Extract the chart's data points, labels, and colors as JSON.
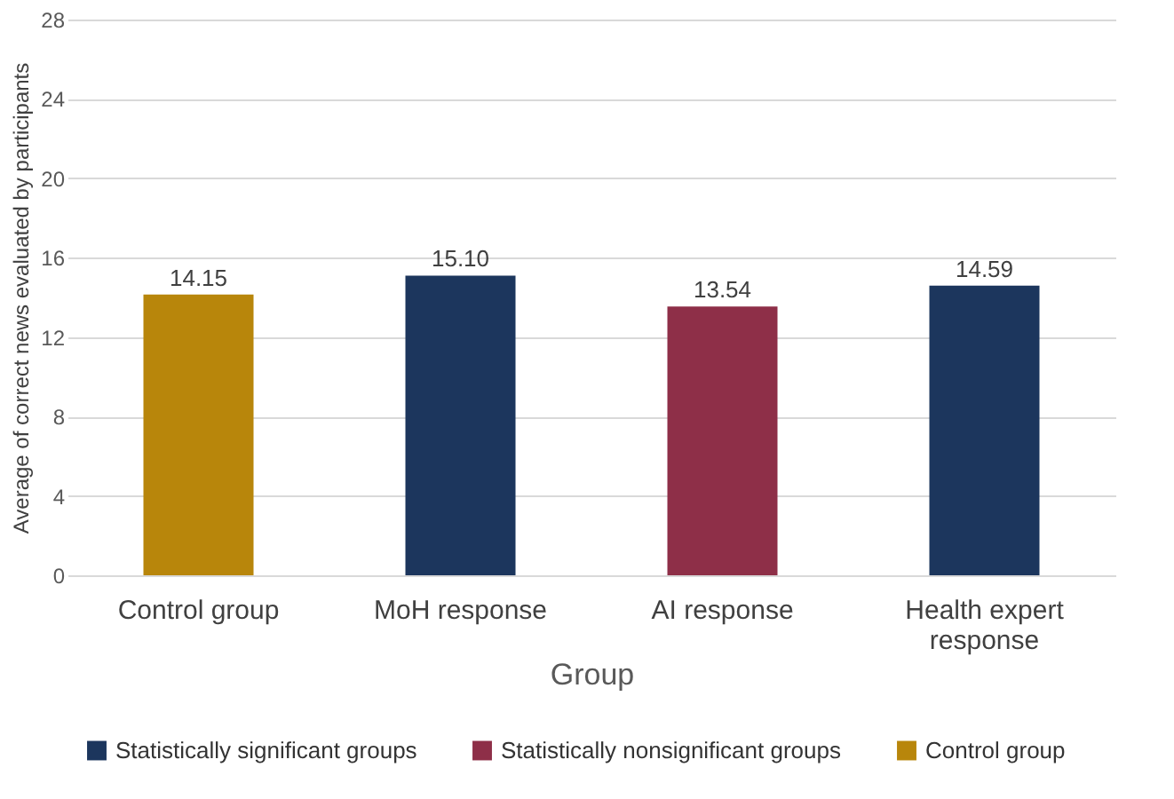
{
  "chart_data": {
    "type": "bar",
    "xlabel": "Group",
    "ylabel": "Average of correct news evaluated by participants",
    "categories": [
      "Control group",
      "MoH response",
      "AI response",
      "Health expert response"
    ],
    "series": [
      {
        "name": "Statistically significant groups",
        "color": "#1c365d",
        "values": [
          null,
          15.1,
          null,
          14.59
        ],
        "value_labels": [
          null,
          "15.10",
          null,
          "14.59"
        ]
      },
      {
        "name": "Statistically nonsignificant groups",
        "color": "#8e2f48",
        "values": [
          null,
          null,
          13.54,
          null
        ],
        "value_labels": [
          null,
          null,
          "13.54",
          null
        ]
      },
      {
        "name": "Control group",
        "color": "#b8860b",
        "values": [
          14.15,
          null,
          null,
          null
        ],
        "value_labels": [
          "14.15",
          null,
          null,
          null
        ]
      }
    ],
    "ylim": [
      0,
      28
    ],
    "yticks": [
      0,
      4,
      8,
      12,
      16,
      20,
      24,
      28
    ],
    "grid": "y",
    "legend": "bottom"
  }
}
